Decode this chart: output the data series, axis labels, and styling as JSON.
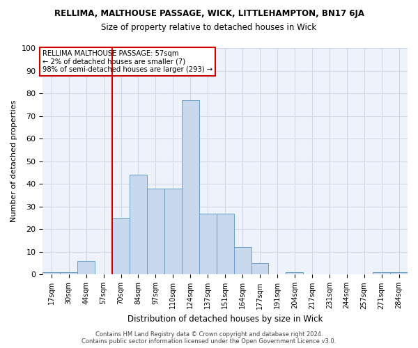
{
  "title": "RELLIMA, MALTHOUSE PASSAGE, WICK, LITTLEHAMPTON, BN17 6JA",
  "subtitle": "Size of property relative to detached houses in Wick",
  "xlabel": "Distribution of detached houses by size in Wick",
  "ylabel": "Number of detached properties",
  "bar_labels": [
    "17sqm",
    "30sqm",
    "44sqm",
    "57sqm",
    "70sqm",
    "84sqm",
    "97sqm",
    "110sqm",
    "124sqm",
    "137sqm",
    "151sqm",
    "164sqm",
    "177sqm",
    "191sqm",
    "204sqm",
    "217sqm",
    "231sqm",
    "244sqm",
    "257sqm",
    "271sqm",
    "284sqm"
  ],
  "bar_values": [
    1,
    1,
    6,
    0,
    25,
    44,
    38,
    38,
    77,
    27,
    27,
    12,
    5,
    0,
    1,
    0,
    0,
    0,
    0,
    1,
    1
  ],
  "bar_color": "#c9d9ed",
  "bar_edge_color": "#6a9ec5",
  "vline_index": 3,
  "vline_color": "#cc0000",
  "annotation_line1": "RELLIMA MALTHOUSE PASSAGE: 57sqm",
  "annotation_line2": "← 2% of detached houses are smaller (7)",
  "annotation_line3": "98% of semi-detached houses are larger (293) →",
  "annotation_box_color": "#ffffff",
  "annotation_box_edge_color": "#cc0000",
  "ylim": [
    0,
    100
  ],
  "yticks": [
    0,
    10,
    20,
    30,
    40,
    50,
    60,
    70,
    80,
    90,
    100
  ],
  "footer": "Contains HM Land Registry data © Crown copyright and database right 2024.\nContains public sector information licensed under the Open Government Licence v3.0.",
  "grid_color": "#d0d8e8",
  "background_color": "#eef2fa"
}
